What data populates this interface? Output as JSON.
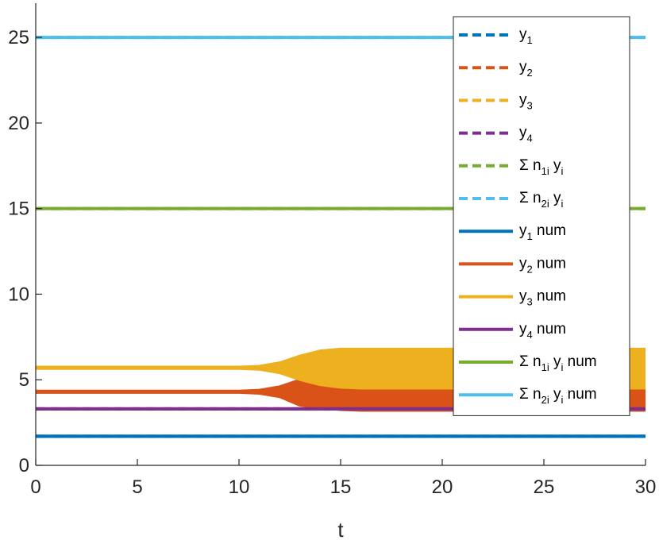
{
  "chart_data": {
    "type": "line",
    "xlabel": "t",
    "ylabel": "",
    "title": "",
    "xlim": [
      0,
      30
    ],
    "ylim": [
      0,
      27
    ],
    "xticks": [
      0,
      5,
      10,
      15,
      20,
      25,
      30
    ],
    "yticks": [
      0,
      5,
      10,
      15,
      20,
      25
    ],
    "grid": false,
    "legend_position": "top-right",
    "series": [
      {
        "name": "y1",
        "label_parts": [
          [
            "y",
            ""
          ],
          [
            "1",
            "sub"
          ]
        ],
        "style": "dashed",
        "color": "#0072BD",
        "kind": "constant",
        "value": 1.7
      },
      {
        "name": "y2",
        "label_parts": [
          [
            "y",
            ""
          ],
          [
            "2",
            "sub"
          ]
        ],
        "style": "dashed",
        "color": "#D95319",
        "kind": "constant",
        "value": 4.3
      },
      {
        "name": "y3",
        "label_parts": [
          [
            "y",
            ""
          ],
          [
            "3",
            "sub"
          ]
        ],
        "style": "dashed",
        "color": "#EDB120",
        "kind": "constant",
        "value": 5.7
      },
      {
        "name": "y4",
        "label_parts": [
          [
            "y",
            ""
          ],
          [
            "4",
            "sub"
          ]
        ],
        "style": "dashed",
        "color": "#7E2F8E",
        "kind": "constant",
        "value": 3.3
      },
      {
        "name": "Σ n1i yi",
        "label_parts": [
          [
            "Σ n",
            ""
          ],
          [
            "1i",
            "sub"
          ],
          [
            " y",
            ""
          ],
          [
            "i",
            "sub"
          ]
        ],
        "style": "dashed",
        "color": "#77AC30",
        "kind": "constant",
        "value": 15
      },
      {
        "name": "Σ n2i yi",
        "label_parts": [
          [
            "Σ n",
            ""
          ],
          [
            "2i",
            "sub"
          ],
          [
            " y",
            ""
          ],
          [
            "i",
            "sub"
          ]
        ],
        "style": "dashed",
        "color": "#4DBEEE",
        "kind": "constant",
        "value": 25
      },
      {
        "name": "y1 num",
        "label_parts": [
          [
            "y",
            ""
          ],
          [
            "1",
            "sub"
          ],
          [
            " num",
            ""
          ]
        ],
        "style": "solid",
        "color": "#0072BD",
        "kind": "constant",
        "value": 1.7
      },
      {
        "name": "y2 num",
        "label_parts": [
          [
            "y",
            ""
          ],
          [
            "2",
            "sub"
          ],
          [
            " num",
            ""
          ]
        ],
        "style": "solid",
        "color": "#D95319",
        "kind": "band",
        "x": [
          0,
          10,
          11,
          12,
          13,
          14,
          15,
          16,
          30
        ],
        "upper": [
          4.35,
          4.35,
          4.4,
          4.6,
          5.0,
          4.7,
          4.55,
          4.5,
          4.5
        ],
        "lower": [
          4.25,
          4.25,
          4.2,
          4.0,
          3.5,
          3.35,
          3.25,
          3.2,
          3.2
        ]
      },
      {
        "name": "y3 num",
        "label_parts": [
          [
            "y",
            ""
          ],
          [
            "3",
            "sub"
          ],
          [
            " num",
            ""
          ]
        ],
        "style": "solid",
        "color": "#EDB120",
        "kind": "band",
        "x": [
          0,
          10,
          11,
          12,
          13,
          14,
          15,
          16,
          30
        ],
        "upper": [
          5.75,
          5.75,
          5.8,
          6.0,
          6.4,
          6.7,
          6.8,
          6.8,
          6.8
        ],
        "lower": [
          5.65,
          5.65,
          5.6,
          5.4,
          5.0,
          4.7,
          4.55,
          4.5,
          4.5
        ]
      },
      {
        "name": "y4 num",
        "label_parts": [
          [
            "y",
            ""
          ],
          [
            "4",
            "sub"
          ],
          [
            " num",
            ""
          ]
        ],
        "style": "solid",
        "color": "#7E2F8E",
        "kind": "constant",
        "value": 3.3
      },
      {
        "name": "Σ n1i yi num",
        "label_parts": [
          [
            "Σ n",
            ""
          ],
          [
            "1i",
            "sub"
          ],
          [
            " y",
            ""
          ],
          [
            "i",
            "sub"
          ],
          [
            " num",
            ""
          ]
        ],
        "style": "solid",
        "color": "#77AC30",
        "kind": "constant",
        "value": 15
      },
      {
        "name": "Σ n2i yi num",
        "label_parts": [
          [
            "Σ n",
            ""
          ],
          [
            "2i",
            "sub"
          ],
          [
            " y",
            ""
          ],
          [
            "i",
            "sub"
          ],
          [
            " num",
            ""
          ]
        ],
        "style": "solid",
        "color": "#4DBEEE",
        "kind": "constant",
        "value": 25
      }
    ]
  }
}
